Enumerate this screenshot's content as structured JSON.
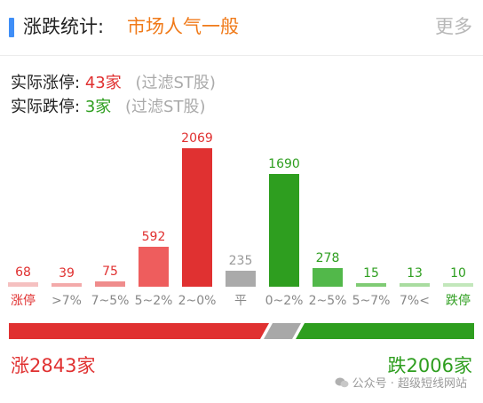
{
  "header": {
    "title": "涨跌统计:",
    "sentiment": "市场人气一般",
    "more_label": "更多",
    "accent_color": "#3f8ef7",
    "sentiment_color": "#f07a19"
  },
  "stats": {
    "limit_up_label": "实际涨停:",
    "limit_up_value": "43家",
    "limit_down_label": "实际跌停:",
    "limit_down_value": "3家",
    "filter_note": "(过滤ST股)"
  },
  "chart_data": {
    "type": "bar",
    "categories": [
      "涨停",
      ">7%",
      "7~5%",
      "5~2%",
      "2~0%",
      "平",
      "0~2%",
      "2~5%",
      "5~7%",
      "7%<",
      "跌停"
    ],
    "values": [
      68,
      39,
      75,
      592,
      2069,
      235,
      1690,
      278,
      15,
      13,
      10
    ],
    "value_labels": [
      "68",
      "39",
      "75",
      "592",
      "2069",
      "235",
      "1690",
      "278",
      "15",
      "13",
      "10"
    ],
    "bar_colors": [
      "#f5c0c0",
      "#f3aaaa",
      "#ef8c8c",
      "#ee5d5d",
      "#e03131",
      "#aaaaaa",
      "#2e9e1f",
      "#52b84a",
      "#7fcb74",
      "#a9dca0",
      "#c2e7bb"
    ],
    "label_colors": [
      "#e03030",
      "#e03030",
      "#e03030",
      "#e03030",
      "#e03030",
      "#999999",
      "#2e9e1f",
      "#2e9e1f",
      "#2e9e1f",
      "#2e9e1f",
      "#2e9e1f"
    ],
    "category_colors": [
      "#e03030",
      "#888888",
      "#888888",
      "#888888",
      "#888888",
      "#888888",
      "#888888",
      "#888888",
      "#888888",
      "#888888",
      "#2e9e1f"
    ],
    "ylim": [
      0,
      2069
    ]
  },
  "ratio_bar": {
    "up": 2843,
    "flat": 235,
    "down": 2006,
    "up_color": "#e03131",
    "flat_color": "#a8a8a8",
    "down_color": "#2e9e1f"
  },
  "totals": {
    "rise_label": "涨2843家",
    "fall_label": "跌2006家"
  },
  "watermark": {
    "text": "公众号 · 超级短线网站"
  }
}
